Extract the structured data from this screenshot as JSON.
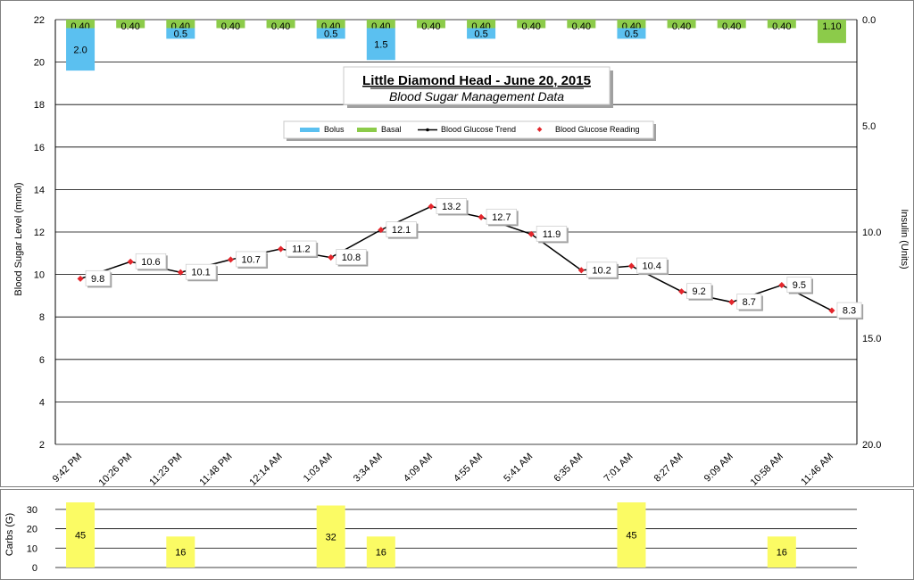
{
  "chart_data": [
    {
      "type": "line",
      "title": "Little Diamond Head - June 20, 2015",
      "subtitle": "Blood Sugar Management Data",
      "ylabel": "Blood Sugar Level  (mmol)",
      "y2label": "Insulin (Units)",
      "ylim": [
        2,
        22
      ],
      "y2lim": [
        0,
        20
      ],
      "y2_reversed": true,
      "yticks": [
        "2",
        "4",
        "6",
        "8",
        "10",
        "12",
        "14",
        "16",
        "18",
        "20",
        "22"
      ],
      "y2ticks": [
        "0.0",
        "5.0",
        "10.0",
        "15.0",
        "20.0"
      ],
      "categories": [
        "9:42 PM",
        "10:26 PM",
        "11:23 PM",
        "11:48 PM",
        "12:14 AM",
        "1:03 AM",
        "3:34 AM",
        "4:09 AM",
        "4:55 AM",
        "5:41 AM",
        "6:35 AM",
        "7:01 AM",
        "8:27 AM",
        "9:09 AM",
        "10:58 AM",
        "11:46 AM"
      ],
      "legend": {
        "placement": "top-center",
        "items": [
          {
            "label": "Bolus",
            "color": "#5bc0f0",
            "kind": "bar"
          },
          {
            "label": "Basal",
            "color": "#8ccb4a",
            "kind": "bar"
          },
          {
            "label": "Blood Glucose Trend",
            "color": "#000000",
            "kind": "line"
          },
          {
            "label": "Blood Glucose Reading",
            "color": "#e3262c",
            "kind": "marker"
          }
        ]
      },
      "series": [
        {
          "name": "Blood Glucose Reading",
          "axis": "left",
          "values": [
            9.8,
            10.6,
            10.1,
            10.7,
            11.2,
            10.8,
            12.1,
            13.2,
            12.7,
            11.9,
            10.2,
            10.4,
            9.2,
            8.7,
            9.5,
            8.3
          ],
          "value_labels": [
            "9.8",
            "10.6",
            "10.1",
            "10.7",
            "11.2",
            "10.8",
            "12.1",
            "13.2",
            "12.7",
            "11.9",
            "10.2",
            "10.4",
            "9.2",
            "8.7",
            "9.5",
            "8.3"
          ]
        },
        {
          "name": "Basal",
          "axis": "right",
          "values": [
            0.4,
            0.4,
            0.4,
            0.4,
            0.4,
            0.4,
            0.4,
            0.4,
            0.4,
            0.4,
            0.4,
            0.4,
            0.4,
            0.4,
            0.4,
            1.1
          ],
          "value_labels": [
            "0.40",
            "0.40",
            "0.40",
            "0.40",
            "0.40",
            "0.40",
            "0.40",
            "0.40",
            "0.40",
            "0.40",
            "0.40",
            "0.40",
            "0.40",
            "0.40",
            "0.40",
            "1.10"
          ]
        },
        {
          "name": "Bolus",
          "axis": "right",
          "values": [
            2.0,
            null,
            0.5,
            null,
            null,
            0.5,
            1.5,
            null,
            0.5,
            null,
            null,
            0.5,
            null,
            null,
            null,
            null
          ],
          "value_labels": [
            "2.0",
            "",
            "0.5",
            "",
            "",
            "0.5",
            "1.5",
            "",
            "0.5",
            "",
            "",
            "0.5",
            "",
            "",
            "",
            ""
          ]
        }
      ],
      "colors": {
        "glucose_marker": "#e3262c",
        "trend_line": "#000000",
        "basal": "#8ccb4a",
        "bolus": "#5bc0f0",
        "grid": "#000000"
      }
    },
    {
      "type": "bar",
      "ylabel": "Carbs (G)",
      "ylim": [
        0,
        35
      ],
      "yticks": [
        "0",
        "10",
        "20",
        "30"
      ],
      "color": "#fbfb64",
      "values": [
        45,
        null,
        16,
        null,
        null,
        32,
        16,
        null,
        null,
        null,
        null,
        45,
        null,
        null,
        16,
        null
      ],
      "value_labels": [
        "45",
        "",
        "16",
        "",
        "",
        "32",
        "16",
        "",
        "",
        "",
        "",
        "45",
        "",
        "",
        "16",
        ""
      ]
    }
  ]
}
